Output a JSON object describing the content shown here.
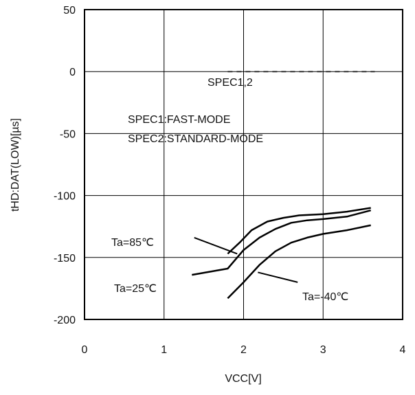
{
  "chart_data": {
    "type": "line",
    "title": "",
    "xlabel": "VCC[V]",
    "ylabel": "tHD:DAT(LOW)[µs]",
    "xlim": [
      0,
      4
    ],
    "ylim": [
      -200,
      50
    ],
    "xticks": [
      "0",
      "1",
      "2",
      "3",
      "4"
    ],
    "yticks": [
      "50",
      "0",
      "-50",
      "-100",
      "-150",
      "-200"
    ],
    "grid": true,
    "legend": "none",
    "series": [
      {
        "name": "Ta=85℃",
        "style": "solid",
        "color": "#000000",
        "x": [
          1.8,
          1.95,
          2.1,
          2.3,
          2.5,
          2.7,
          3.0,
          3.3,
          3.6
        ],
        "y": [
          -147,
          -138,
          -128,
          -121,
          -118,
          -116,
          -115,
          -113,
          -110
        ]
      },
      {
        "name": "Ta=25℃",
        "style": "solid",
        "color": "#000000",
        "x": [
          1.35,
          1.8,
          2.0,
          2.2,
          2.4,
          2.6,
          2.8,
          3.0,
          3.3,
          3.6
        ],
        "y": [
          -164,
          -159,
          -144,
          -134,
          -127,
          -122,
          -120,
          -119,
          -117,
          -112
        ]
      },
      {
        "name": "Ta=-40℃",
        "style": "solid",
        "color": "#000000",
        "x": [
          1.8,
          2.0,
          2.2,
          2.4,
          2.6,
          2.8,
          3.0,
          3.3,
          3.6
        ],
        "y": [
          -183,
          -170,
          -156,
          -145,
          -138,
          -134,
          -131,
          -128,
          -124
        ]
      },
      {
        "name": "SPEC1,2",
        "style": "dashed",
        "color": "#333333",
        "x": [
          1.8,
          3.65
        ],
        "y": [
          0,
          0
        ]
      }
    ],
    "annotations": {
      "spec_line_label": "SPEC1,2",
      "spec1": "SPEC1:FAST-MODE",
      "spec2": "SPEC2:STANDARD-MODE",
      "ta85": "Ta=85℃",
      "ta25": "Ta=25℃",
      "ta_neg40": "Ta=-40℃"
    }
  }
}
